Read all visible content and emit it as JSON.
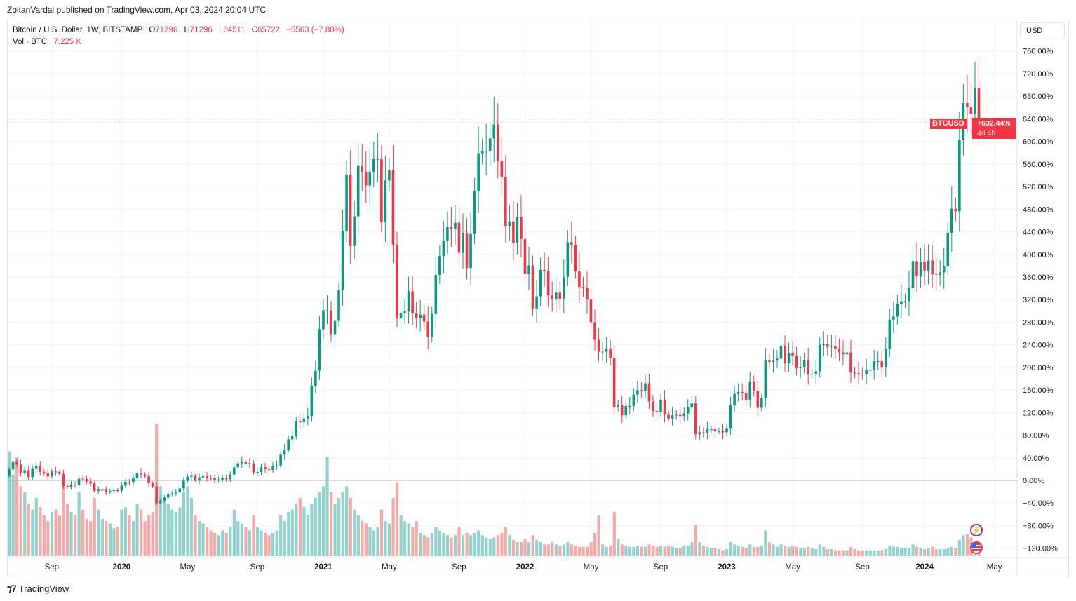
{
  "publisher_line": "ZoltanVardai published on TradingView.com, Apr 03, 2024 20:04 UTC",
  "legend": {
    "symbol": "Bitcoin / U.S. Dollar, 1W, BITSTAMP",
    "open_label": "O",
    "open": "71296",
    "high_label": "H",
    "high": "71296",
    "low_label": "L",
    "low": "64511",
    "close_label": "C",
    "close": "65722",
    "change": "−5563 (−7.80%)",
    "volume_label": "Vol · BTC",
    "volume": "7.225 K"
  },
  "currency_button": "USD",
  "last_price": {
    "symbol": "BTCUSD",
    "value": "+632.44%",
    "countdown": "4d 4h"
  },
  "events": [
    {
      "icon": "lightning-icon"
    },
    {
      "icon": "us-flag-icon"
    }
  ],
  "branding": "TradingView",
  "colors": {
    "up": "#089981",
    "down": "#f23645",
    "vol_up": "#92d2cc",
    "vol_down": "#f7a9a7",
    "grid": "#f0f3fa",
    "zero_line": "#b2b5be"
  },
  "chart_data": {
    "type": "candlestick",
    "interval": "1W",
    "scale": "percent",
    "last_percent": 632.44,
    "y_ticks": [
      "760.00%",
      "720.00%",
      "680.00%",
      "640.00%",
      "600.00%",
      "560.00%",
      "520.00%",
      "480.00%",
      "440.00%",
      "400.00%",
      "360.00%",
      "320.00%",
      "280.00%",
      "240.00%",
      "200.00%",
      "160.00%",
      "120.00%",
      "80.00%",
      "40.00%",
      "0.00%",
      "−40.00%",
      "−80.00%",
      "−120.00%"
    ],
    "x_ticks": [
      {
        "label": "Sep",
        "week": 11,
        "bold": false
      },
      {
        "label": "2020",
        "week": 29,
        "bold": true
      },
      {
        "label": "May",
        "week": 46,
        "bold": false
      },
      {
        "label": "Sep",
        "week": 64,
        "bold": false
      },
      {
        "label": "2021",
        "week": 81,
        "bold": true
      },
      {
        "label": "May",
        "week": 98,
        "bold": false
      },
      {
        "label": "Sep",
        "week": 116,
        "bold": false
      },
      {
        "label": "2022",
        "week": 133,
        "bold": true
      },
      {
        "label": "May",
        "week": 150,
        "bold": false
      },
      {
        "label": "Sep",
        "week": 168,
        "bold": false
      },
      {
        "label": "2023",
        "week": 185,
        "bold": true
      },
      {
        "label": "May",
        "week": 202,
        "bold": false
      },
      {
        "label": "Sep",
        "week": 220,
        "bold": false
      },
      {
        "label": "2024",
        "week": 236,
        "bold": true
      },
      {
        "label": "May",
        "week": 254,
        "bold": false
      }
    ],
    "close_usd": [
      10700,
      11900,
      11500,
      10200,
      10600,
      9500,
      10800,
      11300,
      10300,
      10100,
      9600,
      10400,
      10300,
      10000,
      8050,
      7950,
      8300,
      8200,
      9250,
      9200,
      8800,
      8500,
      7300,
      7500,
      7500,
      7100,
      7300,
      7400,
      7350,
      8150,
      8700,
      8600,
      9350,
      10150,
      9900,
      9650,
      8530,
      8000,
      5350,
      5800,
      6250,
      6800,
      6900,
      7100,
      7700,
      8900,
      9550,
      9700,
      8900,
      9450,
      9650,
      9350,
      9300,
      9000,
      9100,
      9300,
      9160,
      9900,
      11050,
      11700,
      11900,
      11650,
      11700,
      10250,
      10300,
      11100,
      10750,
      10650,
      11300,
      11350,
      13050,
      13800,
      15500,
      16000,
      18400,
      18200,
      18800,
      19200,
      24000,
      26400,
      33000,
      36000,
      36000,
      32200,
      34300,
      39200,
      48600,
      57500,
      46200,
      50900,
      59000,
      58000,
      55800,
      58000,
      60000,
      60000,
      50000,
      56600,
      58200,
      46400,
      34700,
      35600,
      35800,
      39000,
      35500,
      34700,
      35300,
      34200,
      31800,
      35400,
      41600,
      44600,
      47000,
      49300,
      48900,
      49900,
      45100,
      48300,
      42700,
      48200,
      54900,
      60900,
      61300,
      61300,
      63300,
      65500,
      59700,
      57200,
      49400,
      50100,
      46700,
      50800,
      47300,
      41800,
      43100,
      36300,
      38200,
      42400,
      42200,
      38400,
      37700,
      38800,
      37800,
      41300,
      46800,
      46400,
      42200,
      39700,
      39500,
      37700,
      34100,
      31300,
      29400,
      29400,
      29900,
      28400,
      20600,
      21000,
      19300,
      20800,
      20800,
      22600,
      23300,
      23200,
      24400,
      21500,
      20000,
      19800,
      21800,
      19400,
      18800,
      19300,
      19400,
      19200,
      19600,
      20600,
      21200,
      16300,
      16600,
      16500,
      17100,
      17100,
      16800,
      16800,
      16600,
      17200,
      20900,
      22700,
      23000,
      22900,
      21800,
      24600,
      23200,
      20500,
      22000,
      28000,
      27800,
      28000,
      28300,
      30300,
      27600,
      29200,
      28800,
      26800,
      26900,
      28100,
      25800,
      25900,
      26300,
      30500,
      30600,
      30200,
      30300,
      29900,
      29300,
      29000,
      29300,
      26100,
      26000,
      25900,
      25800,
      26500,
      26500,
      27900,
      27900,
      26900,
      29900,
      34500,
      35000,
      37000,
      37400,
      37450,
      39500,
      43800,
      41400,
      43700,
      42300,
      43900,
      41700,
      41600,
      42000,
      43000,
      48300,
      52100,
      51700,
      63100,
      68900,
      68300,
      67200,
      71296,
      65722
    ],
    "volume_k_btc": [
      90,
      70,
      85,
      60,
      55,
      45,
      40,
      50,
      42,
      35,
      30,
      38,
      40,
      35,
      60,
      45,
      38,
      35,
      55,
      40,
      32,
      30,
      50,
      40,
      32,
      30,
      28,
      24,
      25,
      40,
      42,
      35,
      30,
      45,
      40,
      30,
      35,
      38,
      114,
      60,
      50,
      45,
      40,
      38,
      42,
      55,
      60,
      50,
      35,
      30,
      28,
      25,
      22,
      20,
      18,
      22,
      20,
      25,
      40,
      30,
      28,
      25,
      22,
      35,
      25,
      22,
      20,
      18,
      20,
      22,
      35,
      30,
      38,
      40,
      45,
      50,
      42,
      35,
      45,
      50,
      55,
      60,
      85,
      55,
      45,
      50,
      55,
      60,
      50,
      40,
      35,
      30,
      28,
      25,
      22,
      25,
      40,
      30,
      28,
      50,
      63,
      35,
      30,
      28,
      25,
      30,
      20,
      18,
      16,
      20,
      25,
      22,
      20,
      18,
      16,
      18,
      25,
      18,
      20,
      18,
      20,
      22,
      18,
      16,
      15,
      16,
      18,
      20,
      25,
      18,
      14,
      12,
      12,
      15,
      12,
      18,
      14,
      12,
      10,
      10,
      12,
      10,
      9,
      10,
      12,
      10,
      9,
      8,
      8,
      8,
      12,
      20,
      35,
      10,
      8,
      9,
      38,
      15,
      10,
      9,
      8,
      8,
      9,
      8,
      8,
      10,
      9,
      8,
      9,
      8,
      9,
      8,
      7,
      7,
      9,
      9,
      12,
      27,
      12,
      9,
      8,
      7,
      7,
      6,
      5,
      6,
      12,
      10,
      9,
      8,
      7,
      10,
      8,
      8,
      9,
      22,
      12,
      10,
      8,
      10,
      9,
      8,
      9,
      8,
      7,
      7,
      8,
      7,
      6,
      10,
      8,
      6,
      6,
      5,
      5,
      5,
      5,
      8,
      6,
      5,
      5,
      5,
      5,
      5,
      5,
      5,
      6,
      9,
      8,
      8,
      7,
      7,
      7,
      10,
      8,
      7,
      6,
      7,
      8,
      6,
      6,
      6,
      7,
      8,
      7,
      14,
      18,
      19,
      16,
      10,
      7.225
    ]
  }
}
